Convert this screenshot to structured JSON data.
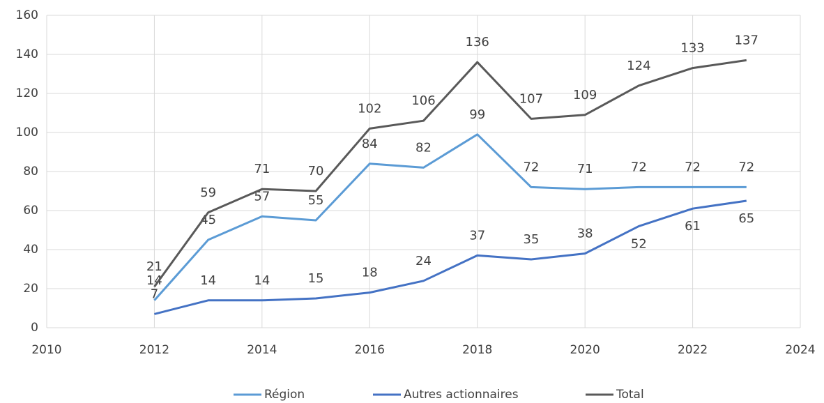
{
  "chart_data": {
    "type": "line",
    "x": [
      2012,
      2013,
      2014,
      2015,
      2016,
      2017,
      2018,
      2019,
      2020,
      2021,
      2022,
      2023
    ],
    "series": [
      {
        "name": "Région",
        "color": "#5b9bd5",
        "values": [
          14,
          45,
          57,
          55,
          84,
          82,
          99,
          72,
          71,
          72,
          72,
          72
        ]
      },
      {
        "name": "Autres actionnaires",
        "color": "#4472c4",
        "values": [
          7,
          14,
          14,
          15,
          18,
          24,
          37,
          35,
          38,
          52,
          61,
          65
        ]
      },
      {
        "name": "Total",
        "color": "#595959",
        "values": [
          21,
          59,
          71,
          70,
          102,
          106,
          136,
          107,
          109,
          124,
          133,
          137
        ]
      }
    ],
    "xlim": [
      2010,
      2024
    ],
    "xticks": [
      2010,
      2012,
      2014,
      2016,
      2018,
      2020,
      2022,
      2024
    ],
    "ylim": [
      0,
      160
    ],
    "yticks": [
      0,
      20,
      40,
      60,
      80,
      100,
      120,
      140,
      160
    ],
    "grid": true,
    "legend": "bottom",
    "data_labels": true
  }
}
